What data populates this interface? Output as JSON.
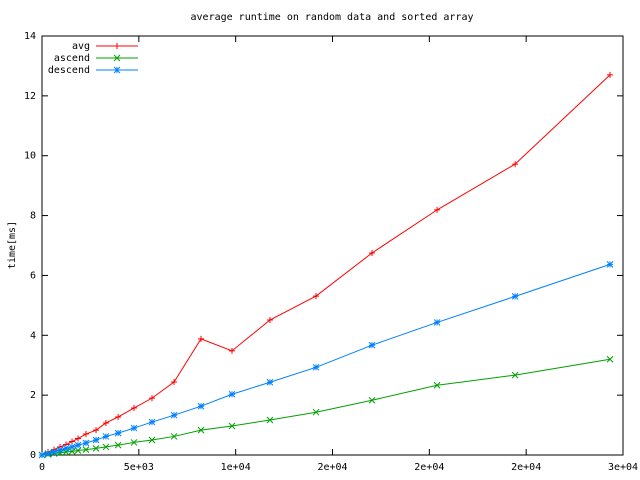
{
  "chart_data": {
    "type": "line",
    "title": "average runtime on random data and sorted array",
    "y_label": "time[ms]",
    "x": [
      0,
      310,
      620,
      930,
      1240,
      1550,
      1860,
      2270,
      2790,
      3300,
      3930,
      4750,
      5680,
      6820,
      8210,
      9810,
      11770,
      14150,
      17040,
      20400,
      24430,
      29330
    ],
    "series": [
      {
        "name": "avg",
        "color": "#ff0000",
        "marker": "plus",
        "values": [
          0,
          0.1,
          0.18,
          0.27,
          0.35,
          0.45,
          0.55,
          0.7,
          0.83,
          1.07,
          1.27,
          1.57,
          1.9,
          2.44,
          3.88,
          3.48,
          4.51,
          5.31,
          6.75,
          8.19,
          9.72,
          12.7
        ]
      },
      {
        "name": "ascend",
        "color": "#00a000",
        "marker": "cross",
        "values": [
          0,
          0.02,
          0.05,
          0.07,
          0.1,
          0.12,
          0.15,
          0.18,
          0.22,
          0.27,
          0.33,
          0.42,
          0.5,
          0.62,
          0.83,
          0.97,
          1.17,
          1.43,
          1.83,
          2.33,
          2.67,
          3.2
        ]
      },
      {
        "name": "descend",
        "color": "#0080ff",
        "marker": "star",
        "values": [
          0,
          0.05,
          0.1,
          0.17,
          0.22,
          0.27,
          0.33,
          0.4,
          0.5,
          0.62,
          0.73,
          0.9,
          1.1,
          1.33,
          1.63,
          2.03,
          2.43,
          2.93,
          3.67,
          4.43,
          5.3,
          6.37
        ]
      }
    ],
    "xlim": [
      0,
      30000
    ],
    "xticks": [
      0,
      {
        "value": 5000,
        "label": "5e+03"
      },
      {
        "value": 10000,
        "label": "1e+04"
      },
      {
        "value": 15000,
        "label": "2e+04"
      },
      {
        "value": 20000,
        "label": "2e+04"
      },
      {
        "value": 25000,
        "label": "2e+04"
      },
      {
        "value": 30000,
        "label": "3e+04"
      }
    ],
    "ylim": [
      0,
      14
    ],
    "yticks": [
      0,
      2,
      4,
      6,
      8,
      10,
      12,
      14
    ],
    "grid": false,
    "legend": "top-left"
  }
}
